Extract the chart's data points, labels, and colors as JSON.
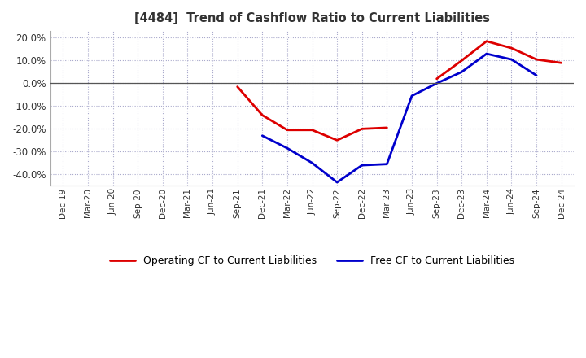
{
  "title": "[4484]  Trend of Cashflow Ratio to Current Liabilities",
  "x_labels": [
    "Dec-19",
    "Mar-20",
    "Jun-20",
    "Sep-20",
    "Dec-20",
    "Mar-21",
    "Jun-21",
    "Sep-21",
    "Dec-21",
    "Mar-22",
    "Jun-22",
    "Sep-22",
    "Dec-22",
    "Mar-23",
    "Jun-23",
    "Sep-23",
    "Dec-23",
    "Mar-24",
    "Jun-24",
    "Sep-24",
    "Dec-24"
  ],
  "operating_cf": [
    null,
    null,
    null,
    null,
    null,
    null,
    null,
    -1.5,
    -14.0,
    -20.5,
    -20.5,
    -25.0,
    -20.0,
    -19.5,
    null,
    2.0,
    10.0,
    18.5,
    15.5,
    10.5,
    9.0
  ],
  "free_cf": [
    null,
    null,
    null,
    null,
    null,
    null,
    null,
    null,
    -23.0,
    -28.5,
    -35.0,
    -43.5,
    -36.0,
    -35.5,
    -5.5,
    0.0,
    5.0,
    13.0,
    10.5,
    3.5,
    null
  ],
  "ylim": [
    -45,
    23
  ],
  "yticks": [
    -40,
    -30,
    -20,
    -10,
    0,
    10,
    20
  ],
  "operating_color": "#dd0000",
  "free_color": "#0000cc",
  "background_color": "#ffffff",
  "plot_bg_color": "#ffffff",
  "grid_color": "#aaaacc",
  "legend_operating": "Operating CF to Current Liabilities",
  "legend_free": "Free CF to Current Liabilities",
  "title_color": "#333333",
  "tick_color": "#333333"
}
